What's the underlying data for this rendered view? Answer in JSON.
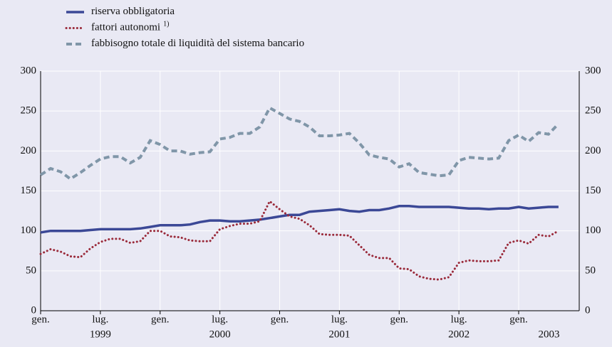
{
  "chart_data": {
    "type": "line",
    "categories": [
      "gen.",
      null,
      null,
      null,
      null,
      null,
      "lug.",
      null,
      null,
      null,
      null,
      null,
      "gen.",
      null,
      null,
      null,
      null,
      null,
      "lug.",
      null,
      null,
      null,
      null,
      null,
      "gen.",
      null,
      null,
      null,
      null,
      null,
      "lug.",
      null,
      null,
      null,
      null,
      null,
      "gen.",
      null,
      null,
      null,
      null,
      null,
      "lug.",
      null,
      null,
      null,
      null,
      null,
      "gen.",
      null,
      null,
      null,
      null
    ],
    "year_labels": [
      "1999",
      "2000",
      "2001",
      "2002",
      "2003"
    ],
    "series": [
      {
        "name": "riserva obbligatoria",
        "color": "#3b4896",
        "style": "solid",
        "values": [
          98,
          100,
          100,
          100,
          100,
          101,
          102,
          102,
          102,
          102,
          103,
          105,
          107,
          107,
          107,
          108,
          111,
          113,
          113,
          112,
          112,
          113,
          114,
          116,
          118,
          120,
          120,
          124,
          125,
          126,
          127,
          125,
          124,
          126,
          126,
          128,
          131,
          131,
          130,
          130,
          130,
          130,
          129,
          128,
          128,
          127,
          128,
          128,
          130,
          128,
          129,
          130,
          130
        ]
      },
      {
        "name": "fattori autonomi",
        "footnote_mark": "1)",
        "color": "#9a2a3a",
        "style": "dotted",
        "values": [
          71,
          77,
          74,
          68,
          67,
          78,
          86,
          90,
          90,
          85,
          87,
          100,
          100,
          93,
          92,
          88,
          87,
          87,
          102,
          106,
          109,
          109,
          112,
          137,
          127,
          118,
          115,
          107,
          96,
          95,
          95,
          94,
          82,
          70,
          66,
          66,
          53,
          52,
          43,
          40,
          39,
          42,
          60,
          63,
          62,
          62,
          63,
          85,
          88,
          84,
          95,
          93,
          100
        ]
      },
      {
        "name": "fabbisogno totale di liquidità del sistema bancario",
        "color": "#8096a8",
        "style": "dashed",
        "values": [
          170,
          178,
          174,
          165,
          173,
          182,
          190,
          193,
          193,
          185,
          192,
          213,
          208,
          200,
          200,
          196,
          198,
          199,
          215,
          217,
          222,
          222,
          230,
          254,
          247,
          240,
          237,
          230,
          219,
          219,
          220,
          222,
          210,
          195,
          192,
          190,
          180,
          184,
          173,
          171,
          169,
          170,
          188,
          192,
          191,
          190,
          191,
          213,
          220,
          212,
          223,
          221,
          234
        ]
      }
    ],
    "ylim": [
      0,
      300
    ],
    "yticks": [
      0,
      50,
      100,
      150,
      200,
      250,
      300
    ],
    "grid": true
  }
}
